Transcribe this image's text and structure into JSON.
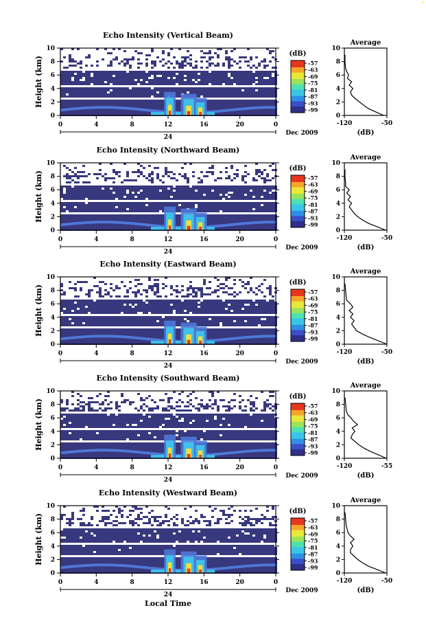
{
  "figure": {
    "date_label": "Dec 2009",
    "day_label": "24",
    "xlabel_bottom": "Local Time",
    "ylabel": "Height (km)",
    "colorbar_unit": "(dB)",
    "colorbar_ticks": [
      "-57",
      "-63",
      "-69",
      "-75",
      "-81",
      "-87",
      "-93",
      "-99"
    ],
    "colorbar_colors": [
      "#30308a",
      "#3a4fc8",
      "#2f8fe6",
      "#39c6e6",
      "#4fe0b0",
      "#9be35a",
      "#e8e838",
      "#f5a62a",
      "#e8361e"
    ],
    "image_colors": {
      "background": "#38387e",
      "low": "#4e78d8",
      "mid": "#3fc0e8",
      "high": "#f0e040",
      "peak": "#e83820"
    }
  },
  "chart_data": [
    {
      "type": "heatmap",
      "title": "Echo Intensity (Vertical Beam)",
      "ylabel": "Height (km)",
      "ylim": [
        0,
        10
      ],
      "yticks": [
        0,
        2,
        4,
        6,
        8,
        10
      ],
      "xlim": [
        0,
        24
      ],
      "xticks": [
        "0",
        "4",
        "8",
        "12",
        "16",
        "20",
        "0"
      ],
      "xlabel": "",
      "colorbar_range": [
        -99,
        -57
      ],
      "average": {
        "title": "Average",
        "xlabel": "(dB)",
        "xlim": [
          -120,
          -50
        ],
        "xticks": [
          "-120",
          "-50"
        ],
        "profile": [
          [
            -55,
            0
          ],
          [
            -68,
            0.5
          ],
          [
            -80,
            1
          ],
          [
            -88,
            1.5
          ],
          [
            -95,
            2
          ],
          [
            -102,
            2.5
          ],
          [
            -108,
            3
          ],
          [
            -110,
            3.5
          ],
          [
            -106,
            4
          ],
          [
            -112,
            4.5
          ],
          [
            -108,
            5
          ],
          [
            -115,
            5.5
          ],
          [
            -113,
            6
          ],
          [
            -116,
            6.5
          ],
          [
            -118,
            7
          ],
          [
            -119,
            8
          ],
          [
            -119,
            9
          ]
        ]
      }
    },
    {
      "type": "heatmap",
      "title": "Echo Intensity (Northward Beam)",
      "ylabel": "Height (km)",
      "ylim": [
        0,
        10
      ],
      "yticks": [
        0,
        2,
        4,
        6,
        8,
        10
      ],
      "xlim": [
        0,
        24
      ],
      "xticks": [
        "0",
        "4",
        "8",
        "12",
        "16",
        "20",
        "0"
      ],
      "xlabel": "",
      "colorbar_range": [
        -99,
        -57
      ],
      "average": {
        "title": "Average",
        "xlabel": "(dB)",
        "xlim": [
          -120,
          -50
        ],
        "xticks": [
          "-120",
          "-50"
        ],
        "profile": [
          [
            -52,
            0
          ],
          [
            -66,
            0.5
          ],
          [
            -80,
            1
          ],
          [
            -90,
            1.5
          ],
          [
            -98,
            2
          ],
          [
            -104,
            2.5
          ],
          [
            -108,
            3
          ],
          [
            -112,
            3.5
          ],
          [
            -108,
            4
          ],
          [
            -114,
            4.5
          ],
          [
            -110,
            5
          ],
          [
            -116,
            5.5
          ],
          [
            -112,
            6
          ],
          [
            -118,
            6.5
          ],
          [
            -118,
            7
          ],
          [
            -119,
            8
          ],
          [
            -119,
            9
          ]
        ]
      }
    },
    {
      "type": "heatmap",
      "title": "Echo Intensity (Eastward Beam)",
      "ylabel": "Height (km)",
      "ylim": [
        0,
        10
      ],
      "yticks": [
        0,
        2,
        4,
        6,
        8,
        10
      ],
      "xlim": [
        0,
        24
      ],
      "xticks": [
        "0",
        "4",
        "8",
        "12",
        "16",
        "20",
        "0"
      ],
      "xlabel": "",
      "colorbar_range": [
        -99,
        -57
      ],
      "average": {
        "title": "Average",
        "xlabel": "(dB)",
        "xlim": [
          -120,
          -50
        ],
        "xticks": [
          "-120",
          "-50"
        ],
        "profile": [
          [
            -50,
            0
          ],
          [
            -64,
            0.5
          ],
          [
            -78,
            1
          ],
          [
            -90,
            1.5
          ],
          [
            -100,
            2
          ],
          [
            -104,
            2.5
          ],
          [
            -108,
            3
          ],
          [
            -104,
            3.5
          ],
          [
            -110,
            4
          ],
          [
            -106,
            4.5
          ],
          [
            -112,
            5
          ],
          [
            -106,
            5.5
          ],
          [
            -110,
            6
          ],
          [
            -116,
            6.5
          ],
          [
            -117,
            7
          ],
          [
            -118,
            8
          ],
          [
            -119,
            9
          ]
        ]
      }
    },
    {
      "type": "heatmap",
      "title": "Echo Intensity (Southward Beam)",
      "ylabel": "Height (km)",
      "ylim": [
        0,
        10
      ],
      "yticks": [
        0,
        2,
        4,
        6,
        8,
        10
      ],
      "xlim": [
        0,
        24
      ],
      "xticks": [
        "0",
        "4",
        "8",
        "12",
        "16",
        "20",
        "0"
      ],
      "xlabel": "",
      "colorbar_range": [
        -99,
        -57
      ],
      "average": {
        "title": "Average",
        "xlabel": "(dB)",
        "xlim": [
          -120,
          -55
        ],
        "xticks": [
          "-120",
          "-55"
        ],
        "profile": [
          [
            -56,
            0
          ],
          [
            -68,
            0.5
          ],
          [
            -80,
            1
          ],
          [
            -90,
            1.5
          ],
          [
            -98,
            2
          ],
          [
            -104,
            2.5
          ],
          [
            -110,
            3
          ],
          [
            -108,
            3.5
          ],
          [
            -104,
            4
          ],
          [
            -108,
            4.5
          ],
          [
            -100,
            5
          ],
          [
            -106,
            5.5
          ],
          [
            -110,
            6
          ],
          [
            -115,
            6.5
          ],
          [
            -117,
            7
          ],
          [
            -118,
            8
          ],
          [
            -119,
            9
          ]
        ]
      }
    },
    {
      "type": "heatmap",
      "title": "Echo Intensity (Westward Beam)",
      "ylabel": "Height (km)",
      "ylim": [
        0,
        10
      ],
      "yticks": [
        0,
        2,
        4,
        6,
        8,
        10
      ],
      "xlim": [
        0,
        24
      ],
      "xticks": [
        "0",
        "4",
        "8",
        "12",
        "16",
        "20",
        "0"
      ],
      "xlabel": "Local Time",
      "colorbar_range": [
        -99,
        -57
      ],
      "average": {
        "title": "Average",
        "xlabel": "(dB)",
        "xlim": [
          -120,
          -50
        ],
        "xticks": [
          "-120",
          "-50"
        ],
        "profile": [
          [
            -52,
            0
          ],
          [
            -66,
            0.5
          ],
          [
            -80,
            1
          ],
          [
            -90,
            1.5
          ],
          [
            -98,
            2
          ],
          [
            -104,
            2.5
          ],
          [
            -110,
            3
          ],
          [
            -110,
            3.5
          ],
          [
            -106,
            4
          ],
          [
            -110,
            4.5
          ],
          [
            -104,
            5
          ],
          [
            -110,
            5.5
          ],
          [
            -114,
            6
          ],
          [
            -117,
            7
          ],
          [
            -118,
            8
          ],
          [
            -119,
            9
          ]
        ]
      }
    }
  ]
}
